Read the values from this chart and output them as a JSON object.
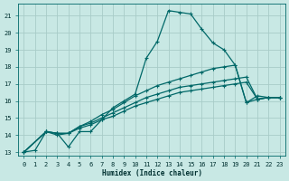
{
  "bg_color": "#c8e8e4",
  "grid_color": "#a8ccc8",
  "line_color": "#006868",
  "xlabel": "Humidex (Indice chaleur)",
  "xlim": [
    -0.5,
    23.5
  ],
  "ylim": [
    12.8,
    21.7
  ],
  "xticks": [
    0,
    1,
    2,
    3,
    4,
    5,
    6,
    7,
    8,
    9,
    10,
    11,
    12,
    13,
    14,
    15,
    16,
    17,
    18,
    19,
    20,
    21,
    22,
    23
  ],
  "yticks": [
    13,
    14,
    15,
    16,
    17,
    18,
    19,
    20,
    21
  ],
  "line1_x": [
    0,
    1,
    2,
    3,
    4,
    5,
    6,
    7,
    8,
    9,
    10,
    11,
    12,
    13,
    14,
    15,
    16,
    17,
    18,
    19,
    20,
    21,
    22,
    23
  ],
  "line1_y": [
    13.0,
    13.1,
    14.2,
    14.1,
    13.3,
    14.2,
    14.2,
    14.9,
    15.6,
    16.0,
    16.4,
    18.5,
    19.5,
    21.3,
    21.2,
    21.1,
    20.2,
    19.4,
    19.0,
    18.1,
    15.9,
    16.3,
    16.2,
    16.2
  ],
  "line2_x": [
    0,
    2,
    3,
    4,
    5,
    6,
    7,
    8,
    9,
    10,
    11,
    12,
    13,
    14,
    15,
    16,
    17,
    18,
    19,
    20,
    21,
    22,
    23
  ],
  "line2_y": [
    13.0,
    14.2,
    14.1,
    14.1,
    14.5,
    14.8,
    15.2,
    15.5,
    15.9,
    16.3,
    16.6,
    16.9,
    17.1,
    17.3,
    17.5,
    17.7,
    17.9,
    18.0,
    18.1,
    15.9,
    16.1,
    16.2,
    16.2
  ],
  "line3_x": [
    0,
    2,
    3,
    4,
    5,
    6,
    7,
    8,
    9,
    10,
    11,
    12,
    13,
    14,
    15,
    16,
    17,
    18,
    19,
    20,
    21,
    22,
    23
  ],
  "line3_y": [
    13.0,
    14.2,
    14.0,
    14.1,
    14.4,
    14.6,
    14.9,
    15.1,
    15.4,
    15.7,
    15.9,
    16.1,
    16.3,
    16.5,
    16.6,
    16.7,
    16.8,
    16.9,
    17.0,
    17.1,
    16.1,
    16.2,
    16.2
  ],
  "line4_x": [
    0,
    2,
    3,
    4,
    5,
    6,
    7,
    8,
    9,
    10,
    11,
    12,
    13,
    14,
    15,
    16,
    17,
    18,
    19,
    20,
    21,
    22,
    23
  ],
  "line4_y": [
    13.0,
    14.2,
    14.1,
    14.1,
    14.5,
    14.7,
    15.0,
    15.3,
    15.6,
    15.9,
    16.2,
    16.4,
    16.6,
    16.8,
    16.9,
    17.0,
    17.1,
    17.2,
    17.3,
    17.4,
    16.1,
    16.2,
    16.2
  ]
}
